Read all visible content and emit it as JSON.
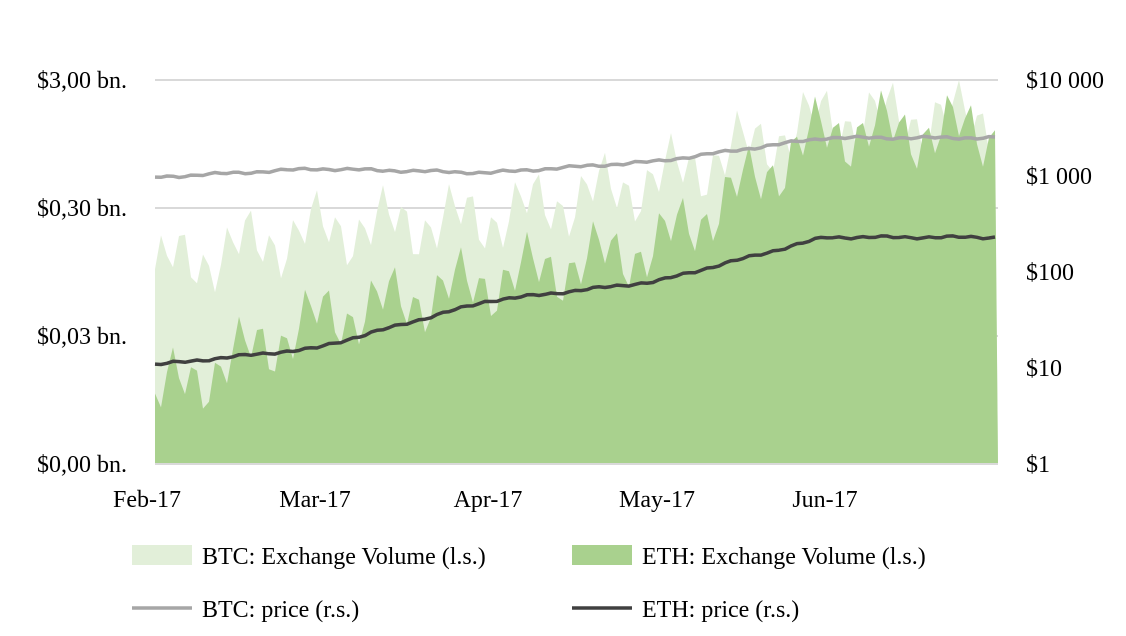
{
  "chart_data": {
    "type": "area",
    "x_ticks": [
      "Feb-17",
      "Mar-17",
      "Apr-17",
      "May-17",
      "Jun-17"
    ],
    "y_left": {
      "scale": "log",
      "range": [
        0.003,
        3.0
      ],
      "ticks": [
        {
          "value": 0.003,
          "label": "$0,00 bn."
        },
        {
          "value": 0.03,
          "label": "$0,03 bn."
        },
        {
          "value": 0.3,
          "label": "$0,30 bn."
        },
        {
          "value": 3.0,
          "label": "$3,00 bn."
        }
      ]
    },
    "y_right": {
      "scale": "log",
      "range": [
        1,
        10000
      ],
      "ticks": [
        {
          "value": 1,
          "label": "$1"
        },
        {
          "value": 10,
          "label": "$10"
        },
        {
          "value": 100,
          "label": "$100"
        },
        {
          "value": 1000,
          "label": "$1 000"
        },
        {
          "value": 10000,
          "label": "$10 000"
        }
      ]
    },
    "grid": true,
    "legend_position": "bottom",
    "series": [
      {
        "name": "BTC: Exchange Volume (l.s.)",
        "kind": "area",
        "axis": "left",
        "color": "#e2efd9",
        "x": [
          "Feb-17",
          "Mar-17",
          "Apr-17",
          "May-17",
          "Jun-17"
        ],
        "values": [
          0.1,
          0.2,
          0.25,
          0.5,
          1.5
        ]
      },
      {
        "name": "ETH: Exchange Volume (l.s.)",
        "kind": "area",
        "axis": "left",
        "color": "#a9d18e",
        "x": [
          "Feb-17",
          "Mar-17",
          "Apr-17",
          "May-17",
          "Jun-17"
        ],
        "values": [
          0.01,
          0.04,
          0.08,
          0.15,
          1.2
        ]
      },
      {
        "name": "BTC: price (r.s.)",
        "kind": "line",
        "axis": "right",
        "color": "#a6a6a6",
        "x": [
          "Feb-17",
          "Mar-17",
          "Apr-17",
          "May-17",
          "Jun-17"
        ],
        "values": [
          970,
          1190,
          1080,
          1420,
          2500
        ]
      },
      {
        "name": "ETH: price (r.s.)",
        "kind": "line",
        "axis": "right",
        "color": "#404040",
        "x": [
          "Feb-17",
          "Mar-17",
          "Apr-17",
          "May-17",
          "Jun-17"
        ],
        "values": [
          10.8,
          16,
          50,
          80,
          230
        ]
      }
    ]
  }
}
